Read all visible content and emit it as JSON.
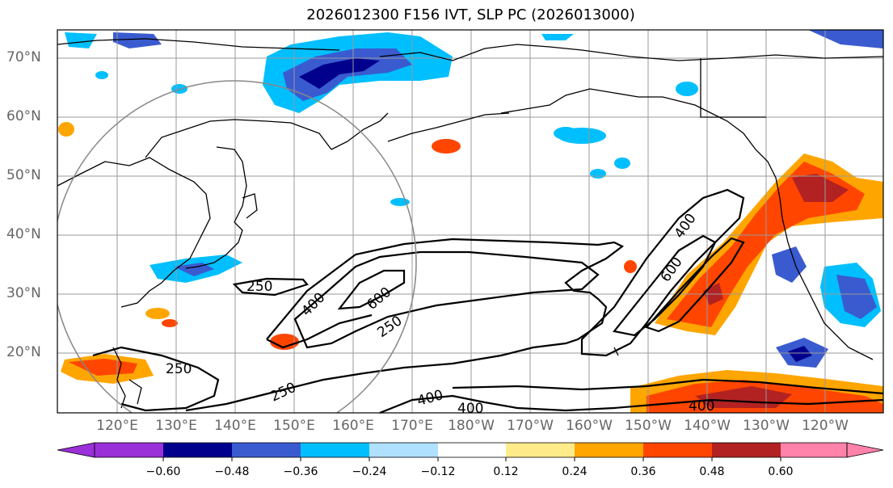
{
  "title": "2026012300 F156 IVT, SLP PC (2026013000)",
  "lat_labels": [
    "70°N",
    "60°N",
    "50°N",
    "40°N",
    "30°N",
    "20°N"
  ],
  "lon_labels": [
    "120°E",
    "130°E",
    "140°E",
    "150°E",
    "160°E",
    "170°E",
    "180°W",
    "170°W",
    "160°W",
    "150°W",
    "140°W",
    "130°W",
    "120°W"
  ],
  "colorbar": {
    "ticks": [
      "−0.60",
      "−0.48",
      "−0.36",
      "−0.24",
      "−0.12",
      "0.12",
      "0.24",
      "0.36",
      "0.48",
      "0.60"
    ],
    "colors": [
      "#9a30d8",
      "#00008c",
      "#3a5bd0",
      "#00bfff",
      "#b0e0ff",
      "#ffffff",
      "#ffeb8a",
      "#ffa500",
      "#ff4500",
      "#b22222",
      "#ff82ab"
    ]
  },
  "contour_labels": [
    "250",
    "400",
    "600",
    "250",
    "250",
    "400",
    "400",
    "400",
    "600",
    "400",
    "250"
  ]
}
